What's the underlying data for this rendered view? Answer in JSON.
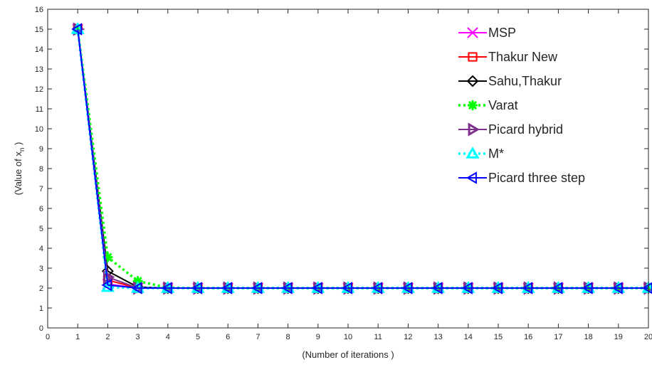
{
  "chart_data": {
    "type": "line",
    "title": "",
    "xlabel": "(Number of iterations )",
    "ylabel": "(Value of x",
    "ylabel_subscript": "n",
    "ylabel_suffix": " )",
    "xlim": [
      0,
      20
    ],
    "ylim": [
      0,
      16
    ],
    "xticks": [
      0,
      1,
      2,
      3,
      4,
      5,
      6,
      7,
      8,
      9,
      10,
      11,
      12,
      13,
      14,
      15,
      16,
      17,
      18,
      19,
      20
    ],
    "yticks": [
      0,
      1,
      2,
      3,
      4,
      5,
      6,
      7,
      8,
      9,
      10,
      11,
      12,
      13,
      14,
      15,
      16
    ],
    "grid": false,
    "legend_position": "top-right",
    "x": [
      1,
      2,
      3,
      4,
      5,
      6,
      7,
      8,
      9,
      10,
      11,
      12,
      13,
      14,
      15,
      16,
      17,
      18,
      19,
      20
    ],
    "series": [
      {
        "name": "MSP",
        "color": "#ff00ff",
        "marker": "x",
        "dash": "solid",
        "values": [
          15,
          2.2,
          2.0,
          2.0,
          2.0,
          2.0,
          2.0,
          2.0,
          2.0,
          2.0,
          2.0,
          2.0,
          2.0,
          2.0,
          2.0,
          2.0,
          2.0,
          2.0,
          2.0,
          2.0
        ]
      },
      {
        "name": "Thakur New",
        "color": "#ff0000",
        "marker": "square",
        "dash": "solid",
        "values": [
          15,
          2.4,
          2.0,
          2.0,
          2.0,
          2.0,
          2.0,
          2.0,
          2.0,
          2.0,
          2.0,
          2.0,
          2.0,
          2.0,
          2.0,
          2.0,
          2.0,
          2.0,
          2.0,
          2.0
        ]
      },
      {
        "name": "Sahu,Thakur",
        "color": "#000000",
        "marker": "diamond",
        "dash": "solid",
        "values": [
          15,
          2.85,
          2.05,
          2.0,
          2.0,
          2.0,
          2.0,
          2.0,
          2.0,
          2.0,
          2.0,
          2.0,
          2.0,
          2.0,
          2.0,
          2.0,
          2.0,
          2.0,
          2.0,
          2.0
        ]
      },
      {
        "name": "Varat",
        "color": "#00ff00",
        "marker": "star",
        "dash": "dotted",
        "values": [
          15,
          3.55,
          2.35,
          2.02,
          2.0,
          2.0,
          2.0,
          2.0,
          2.0,
          2.0,
          2.0,
          2.0,
          2.0,
          2.0,
          2.0,
          2.0,
          2.0,
          2.0,
          2.0,
          2.0
        ]
      },
      {
        "name": "Picard hybrid",
        "color": "#7e2f8e",
        "marker": "triangle-right",
        "dash": "solid",
        "values": [
          15,
          2.55,
          2.0,
          2.0,
          2.0,
          2.0,
          2.0,
          2.0,
          2.0,
          2.0,
          2.0,
          2.0,
          2.0,
          2.0,
          2.0,
          2.0,
          2.0,
          2.0,
          2.0,
          2.0
        ]
      },
      {
        "name": "M*",
        "color": "#00ffff",
        "marker": "triangle-up",
        "dash": "dotted",
        "values": [
          15,
          2.05,
          2.0,
          2.0,
          2.0,
          2.0,
          2.0,
          2.0,
          2.0,
          2.0,
          2.0,
          2.0,
          2.0,
          2.0,
          2.0,
          2.0,
          2.0,
          2.0,
          2.0,
          2.0
        ]
      },
      {
        "name": "Picard three step",
        "color": "#0000ff",
        "marker": "triangle-left",
        "dash": "solid",
        "values": [
          15,
          2.15,
          2.0,
          2.0,
          2.0,
          2.0,
          2.0,
          2.0,
          2.0,
          2.0,
          2.0,
          2.0,
          2.0,
          2.0,
          2.0,
          2.0,
          2.0,
          2.0,
          2.0,
          2.0
        ]
      }
    ]
  }
}
